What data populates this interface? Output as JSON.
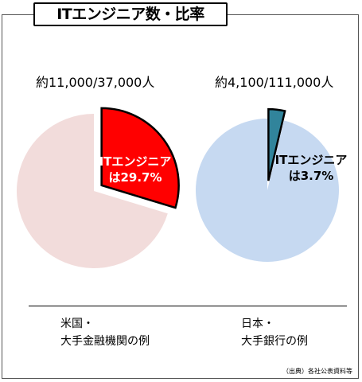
{
  "title": "ITエンジニア数・比率",
  "source_note": "（出典）各社公表資料等",
  "chart_data": [
    {
      "type": "pie",
      "count_text": "約11,000/37,000人",
      "caption_line1": "米国・",
      "caption_line2": "大手金融機関の例",
      "slices": [
        {
          "label_line1": "ITエンジニア",
          "label_line2": "は29.7%",
          "value": 29.7,
          "color": "#ff0000",
          "exploded": true
        },
        {
          "label_line1": "",
          "label_line2": "",
          "value": 70.3,
          "color": "#f2dcdb",
          "exploded": false
        }
      ]
    },
    {
      "type": "pie",
      "count_text": "約4,100/111,000人",
      "caption_line1": "日本・",
      "caption_line2": "大手銀行の例",
      "slices": [
        {
          "label_line1": "ITエンジニア",
          "label_line2": "は3.7%",
          "value": 3.7,
          "color": "#31849b",
          "exploded": true
        },
        {
          "label_line1": "",
          "label_line2": "",
          "value": 96.3,
          "color": "#c6d9f1",
          "exploded": false
        }
      ]
    }
  ]
}
